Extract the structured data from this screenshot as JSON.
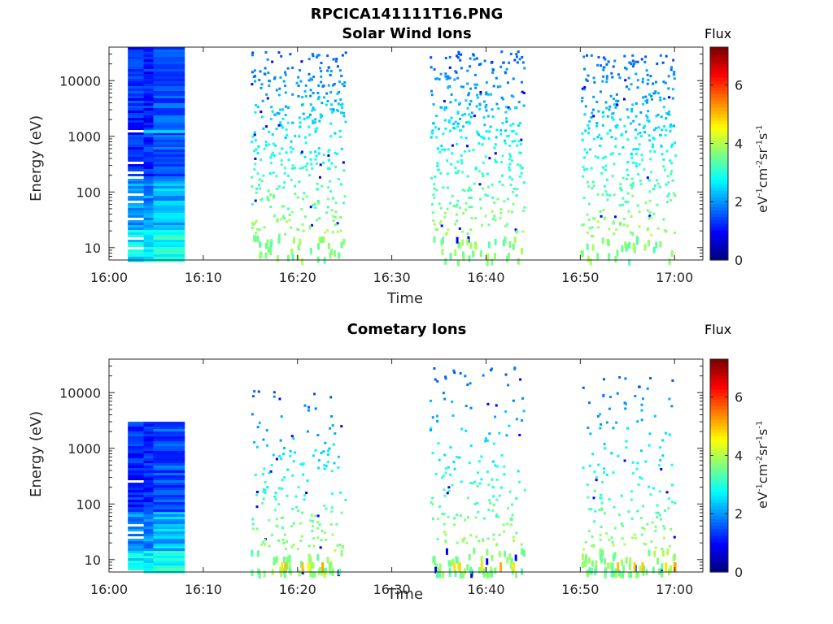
{
  "figure_title": "RPCICA141111T16.PNG",
  "chart_data": [
    {
      "type": "heatmap",
      "title": "Solar Wind Ions",
      "xlabel": "Time",
      "ylabel": "Energy (eV)",
      "y_scale": "log",
      "ylim": [
        6,
        40000
      ],
      "x_ticks": [
        "16:00",
        "16:10",
        "16:20",
        "16:30",
        "16:40",
        "16:50",
        "17:00"
      ],
      "y_ticks": [
        "10",
        "100",
        "1000",
        "10000"
      ],
      "colorbar": {
        "title": "Flux",
        "label": "eV-1cm-2sr-1s-1",
        "ticks": [
          "0",
          "2",
          "4",
          "6"
        ],
        "range": [
          0,
          7.3
        ]
      },
      "data_blocks": [
        {
          "time_start": "16:02",
          "time_end": "16:08",
          "energy_range": [
            6,
            40000
          ],
          "flux_level": 1.0
        },
        {
          "time_start": "16:15",
          "time_end": "16:25",
          "energy_range": [
            6,
            35000
          ],
          "flux_level": 2.5
        },
        {
          "time_start": "16:34",
          "time_end": "16:44",
          "energy_range": [
            6,
            35000
          ],
          "flux_level": 2.5
        },
        {
          "time_start": "16:50",
          "time_end": "17:00",
          "energy_range": [
            6,
            30000
          ],
          "flux_level": 2.5
        }
      ]
    },
    {
      "type": "heatmap",
      "title": "Cometary Ions",
      "xlabel": "Time",
      "ylabel": "Energy (eV)",
      "y_scale": "log",
      "ylim": [
        6,
        40000
      ],
      "x_ticks": [
        "16:00",
        "16:10",
        "16:20",
        "16:30",
        "16:40",
        "16:50",
        "17:00"
      ],
      "y_ticks": [
        "10",
        "100",
        "1000",
        "10000"
      ],
      "colorbar": {
        "title": "Flux",
        "label": "eV-1cm-2sr-1s-1",
        "ticks": [
          "0",
          "2",
          "4",
          "6"
        ],
        "range": [
          0,
          7.3
        ]
      },
      "data_blocks": [
        {
          "time_start": "16:02",
          "time_end": "16:08",
          "energy_range": [
            6,
            3000
          ],
          "flux_level": 1.0
        },
        {
          "time_start": "16:15",
          "time_end": "16:25",
          "energy_range": [
            6,
            12000
          ],
          "flux_level": 2.5
        },
        {
          "time_start": "16:34",
          "time_end": "16:44",
          "energy_range": [
            6,
            30000
          ],
          "flux_level": 2.5
        },
        {
          "time_start": "16:50",
          "time_end": "17:00",
          "energy_range": [
            6,
            22000
          ],
          "flux_level": 2.5
        }
      ]
    }
  ]
}
